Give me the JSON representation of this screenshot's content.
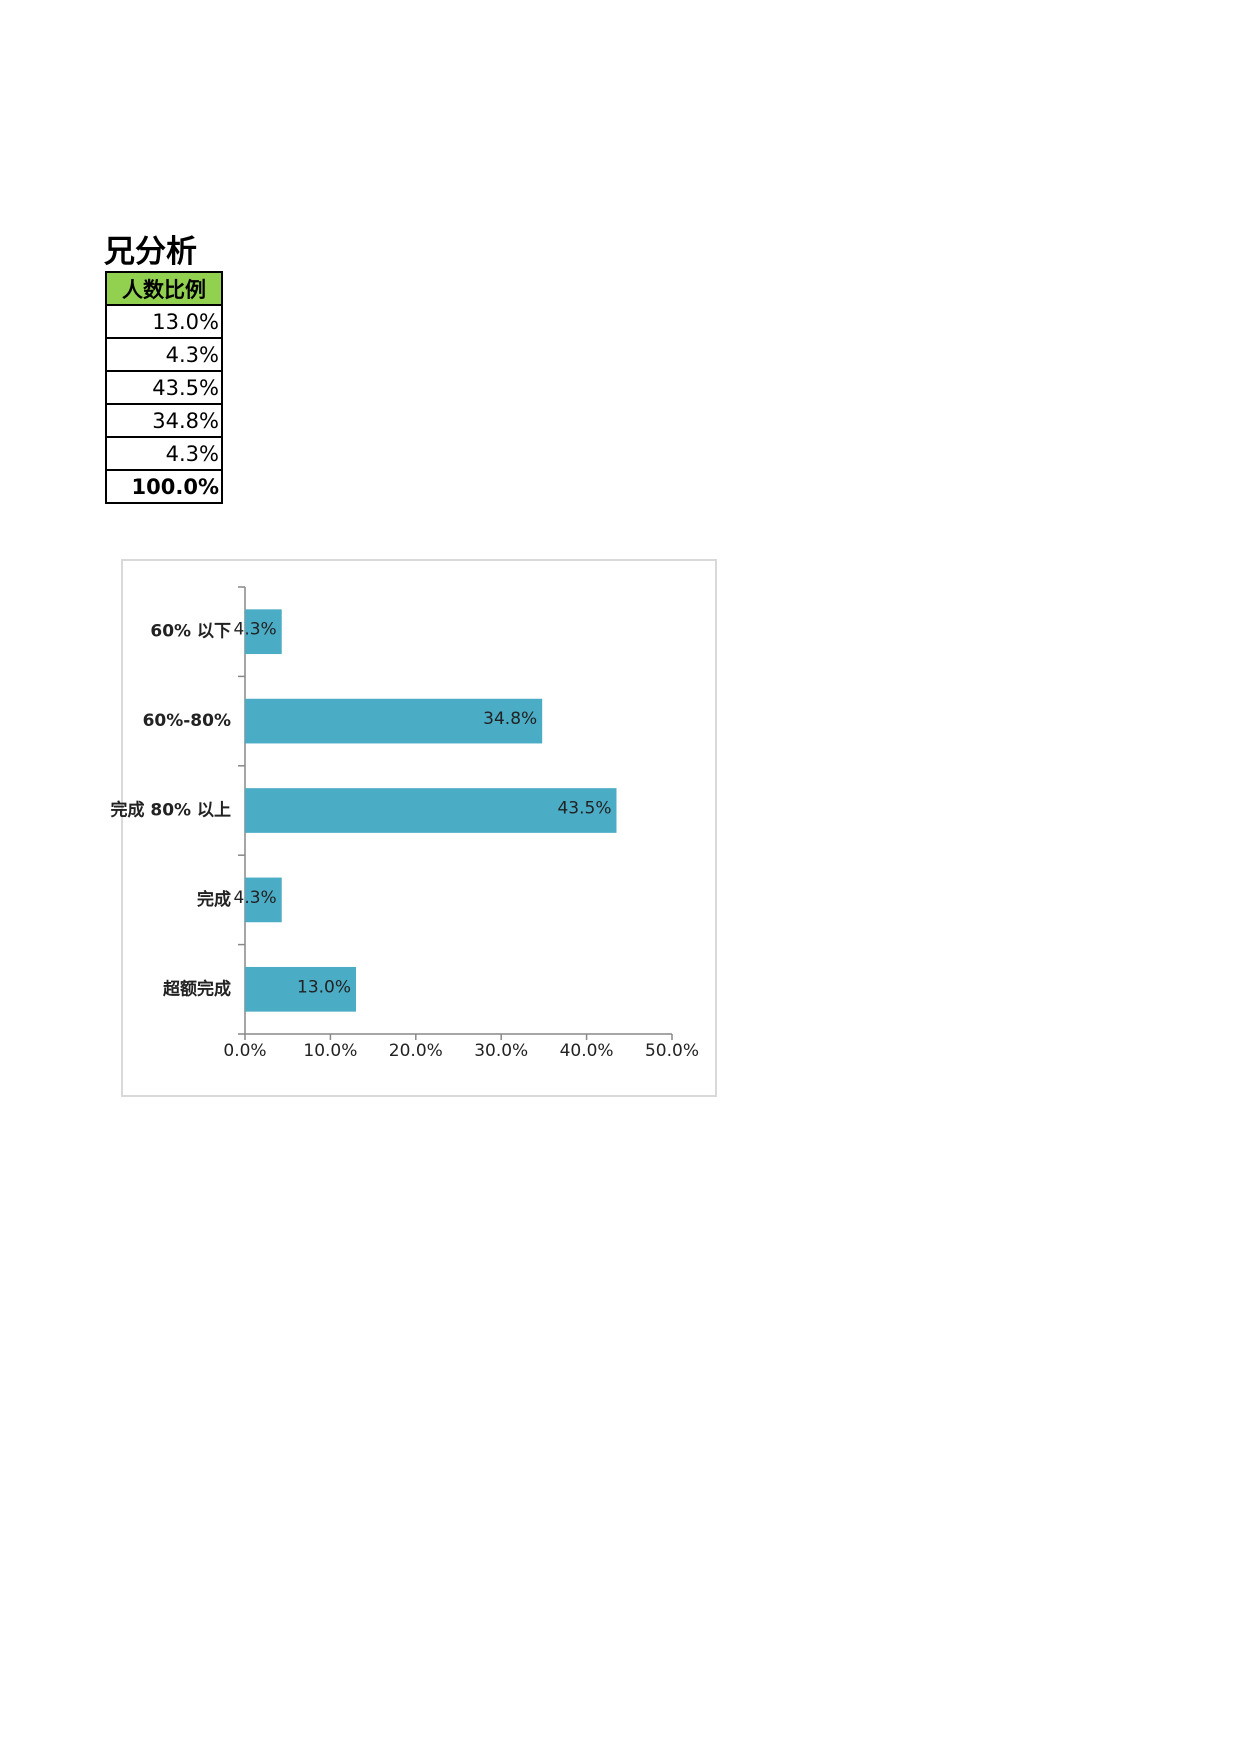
{
  "title": "兄分析",
  "table": {
    "header": "人数比例",
    "rows": [
      [
        "13.0%"
      ],
      [
        "4.3%"
      ],
      [
        "43.5%"
      ],
      [
        "34.8%"
      ],
      [
        "4.3%"
      ],
      [
        "100.0%"
      ]
    ]
  },
  "chart_data": {
    "type": "hbar",
    "categories": [
      "超额完成",
      "完成",
      "完成 80% 以上",
      "60%-80%",
      "60% 以下"
    ],
    "values": [
      13.0,
      4.3,
      43.5,
      34.8,
      4.3
    ],
    "value_labels": [
      "13.0%",
      "4.3%",
      "43.5%",
      "34.8%",
      "4.3%"
    ],
    "color": "#4bacc6",
    "xlim": [
      0,
      50
    ],
    "xticks": [
      {
        "value": 0,
        "label": "0.0%"
      },
      {
        "value": 10,
        "label": "10.0%"
      },
      {
        "value": 20,
        "label": "20.0%"
      },
      {
        "value": 30,
        "label": "30.0%"
      },
      {
        "value": 40,
        "label": "40.0%"
      },
      {
        "value": 50,
        "label": "50.0%"
      }
    ]
  }
}
